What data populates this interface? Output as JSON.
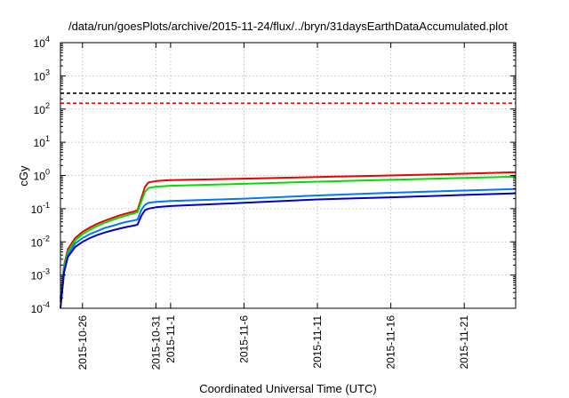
{
  "chart_data": {
    "type": "line",
    "title": "/data/run/goesPlots/archive/2015-11-24/flux/../bryn/31daysEarthDataAccumulated.plot",
    "xlabel": "Coordinated Universal Time (UTC)",
    "ylabel": "cGy",
    "yscale": "log",
    "ylim": [
      0.0001,
      10000
    ],
    "y_ticks": [
      {
        "base": "10",
        "exp": "-4",
        "value": 0.0001
      },
      {
        "base": "10",
        "exp": "-3",
        "value": 0.001
      },
      {
        "base": "10",
        "exp": "-2",
        "value": 0.01
      },
      {
        "base": "10",
        "exp": "-1",
        "value": 0.1
      },
      {
        "base": "10",
        "exp": "0",
        "value": 1
      },
      {
        "base": "10",
        "exp": "1",
        "value": 10
      },
      {
        "base": "10",
        "exp": "2",
        "value": 100
      },
      {
        "base": "10",
        "exp": "3",
        "value": 1000
      },
      {
        "base": "10",
        "exp": "4",
        "value": 10000
      }
    ],
    "xlim": [
      "2015-10-24T12:00",
      "2015-11-24T12:00"
    ],
    "x_ticks": [
      {
        "label": "2015-10-26",
        "value": "2015-10-26"
      },
      {
        "label": "2015-10-31",
        "value": "2015-10-31"
      },
      {
        "label": "2015-11-1",
        "value": "2015-11-01"
      },
      {
        "label": "2015-11-6",
        "value": "2015-11-06"
      },
      {
        "label": "2015-11-11",
        "value": "2015-11-11"
      },
      {
        "label": "2015-11-16",
        "value": "2015-11-16"
      },
      {
        "label": "2015-11-21",
        "value": "2015-11-21"
      }
    ],
    "grid": true,
    "thresholds": [
      {
        "value": 300,
        "color": "#000000"
      },
      {
        "value": 150,
        "color": "#ff0000"
      }
    ],
    "series": [
      {
        "color": "#ee0000",
        "points": [
          [
            "2015-10-24T12:00",
            0.0002
          ],
          [
            "2015-10-24T18:00",
            0.002
          ],
          [
            "2015-10-25T00:00",
            0.006
          ],
          [
            "2015-10-25T12:00",
            0.013
          ],
          [
            "2015-10-26T00:00",
            0.02
          ],
          [
            "2015-10-26T12:00",
            0.027
          ],
          [
            "2015-10-27T00:00",
            0.035
          ],
          [
            "2015-10-27T12:00",
            0.043
          ],
          [
            "2015-10-28T00:00",
            0.052
          ],
          [
            "2015-10-28T12:00",
            0.062
          ],
          [
            "2015-10-29T00:00",
            0.072
          ],
          [
            "2015-10-29T12:00",
            0.082
          ],
          [
            "2015-10-29T18:00",
            0.09
          ],
          [
            "2015-10-30T00:00",
            0.2
          ],
          [
            "2015-10-30T06:00",
            0.45
          ],
          [
            "2015-10-30T12:00",
            0.62
          ],
          [
            "2015-10-31T00:00",
            0.68
          ],
          [
            "2015-11-01T00:00",
            0.72
          ],
          [
            "2015-11-06T00:00",
            0.8
          ],
          [
            "2015-11-11T00:00",
            0.9
          ],
          [
            "2015-11-16T00:00",
            1.0
          ],
          [
            "2015-11-21T00:00",
            1.13
          ],
          [
            "2015-11-24T12:00",
            1.25
          ]
        ]
      },
      {
        "color": "#00dd00",
        "points": [
          [
            "2015-10-24T12:00",
            0.00018
          ],
          [
            "2015-10-24T18:00",
            0.0018
          ],
          [
            "2015-10-25T00:00",
            0.005
          ],
          [
            "2015-10-25T12:00",
            0.011
          ],
          [
            "2015-10-26T00:00",
            0.017
          ],
          [
            "2015-10-26T12:00",
            0.023
          ],
          [
            "2015-10-27T00:00",
            0.03
          ],
          [
            "2015-10-27T12:00",
            0.037
          ],
          [
            "2015-10-28T00:00",
            0.045
          ],
          [
            "2015-10-28T12:00",
            0.054
          ],
          [
            "2015-10-29T00:00",
            0.063
          ],
          [
            "2015-10-29T12:00",
            0.072
          ],
          [
            "2015-10-29T18:00",
            0.078
          ],
          [
            "2015-10-30T00:00",
            0.16
          ],
          [
            "2015-10-30T06:00",
            0.32
          ],
          [
            "2015-10-30T12:00",
            0.42
          ],
          [
            "2015-10-31T00:00",
            0.46
          ],
          [
            "2015-11-01T00:00",
            0.49
          ],
          [
            "2015-11-06T00:00",
            0.56
          ],
          [
            "2015-11-11T00:00",
            0.65
          ],
          [
            "2015-11-16T00:00",
            0.74
          ],
          [
            "2015-11-21T00:00",
            0.84
          ],
          [
            "2015-11-24T12:00",
            0.92
          ]
        ]
      },
      {
        "color": "#0077ff",
        "points": [
          [
            "2015-10-24T12:00",
            0.00015
          ],
          [
            "2015-10-24T18:00",
            0.0014
          ],
          [
            "2015-10-25T00:00",
            0.004
          ],
          [
            "2015-10-25T12:00",
            0.009
          ],
          [
            "2015-10-26T00:00",
            0.013
          ],
          [
            "2015-10-26T12:00",
            0.017
          ],
          [
            "2015-10-27T00:00",
            0.021
          ],
          [
            "2015-10-27T12:00",
            0.026
          ],
          [
            "2015-10-28T00:00",
            0.03
          ],
          [
            "2015-10-28T12:00",
            0.035
          ],
          [
            "2015-10-29T00:00",
            0.04
          ],
          [
            "2015-10-29T12:00",
            0.044
          ],
          [
            "2015-10-29T18:00",
            0.047
          ],
          [
            "2015-10-30T00:00",
            0.09
          ],
          [
            "2015-10-30T06:00",
            0.13
          ],
          [
            "2015-10-30T12:00",
            0.15
          ],
          [
            "2015-10-31T00:00",
            0.16
          ],
          [
            "2015-11-01T00:00",
            0.17
          ],
          [
            "2015-11-06T00:00",
            0.2
          ],
          [
            "2015-11-11T00:00",
            0.25
          ],
          [
            "2015-11-16T00:00",
            0.3
          ],
          [
            "2015-11-21T00:00",
            0.35
          ],
          [
            "2015-11-24T12:00",
            0.39
          ]
        ]
      },
      {
        "color": "#0000cc",
        "points": [
          [
            "2015-10-24T12:00",
            0.0001
          ],
          [
            "2015-10-24T18:00",
            0.0012
          ],
          [
            "2015-10-25T00:00",
            0.0035
          ],
          [
            "2015-10-25T12:00",
            0.007
          ],
          [
            "2015-10-26T00:00",
            0.01
          ],
          [
            "2015-10-26T12:00",
            0.013
          ],
          [
            "2015-10-27T00:00",
            0.016
          ],
          [
            "2015-10-27T12:00",
            0.019
          ],
          [
            "2015-10-28T00:00",
            0.022
          ],
          [
            "2015-10-28T12:00",
            0.025
          ],
          [
            "2015-10-29T00:00",
            0.028
          ],
          [
            "2015-10-29T12:00",
            0.031
          ],
          [
            "2015-10-29T18:00",
            0.033
          ],
          [
            "2015-10-30T00:00",
            0.06
          ],
          [
            "2015-10-30T06:00",
            0.09
          ],
          [
            "2015-10-30T12:00",
            0.1
          ],
          [
            "2015-10-31T00:00",
            0.11
          ],
          [
            "2015-11-01T00:00",
            0.12
          ],
          [
            "2015-11-06T00:00",
            0.15
          ],
          [
            "2015-11-11T00:00",
            0.19
          ],
          [
            "2015-11-16T00:00",
            0.22
          ],
          [
            "2015-11-21T00:00",
            0.26
          ],
          [
            "2015-11-24T12:00",
            0.29
          ]
        ]
      }
    ]
  }
}
